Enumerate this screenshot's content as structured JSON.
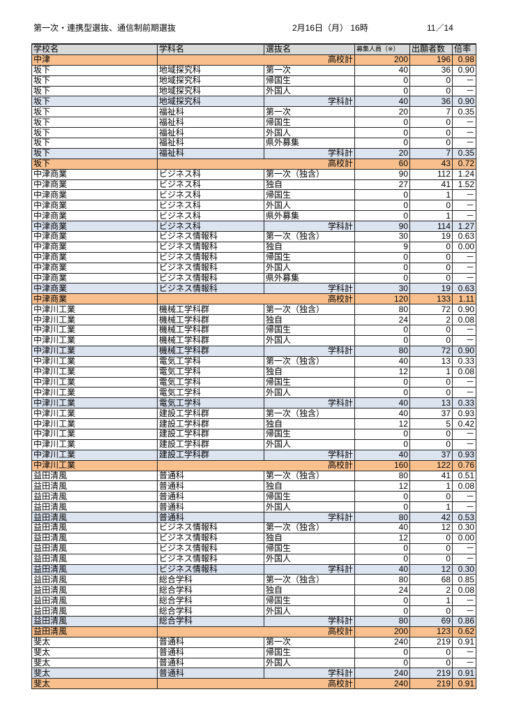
{
  "header": {
    "title": "第一次・連携型選抜、通信制前期選抜",
    "date": "2月16日（月） 16時",
    "page": "11／14"
  },
  "columns": [
    "学校名",
    "学科名",
    "選抜名",
    "募集人員（※）",
    "出願者数",
    "倍率"
  ],
  "colors": {
    "school_total": "#f9c08e",
    "dept_total": "#dce4f0",
    "header": "#d9d9d9"
  },
  "rows": [
    [
      "中津",
      "",
      "高校計",
      "200",
      "196",
      "0.98",
      "tot"
    ],
    [
      "坂下",
      "地域探究科",
      "第一次",
      "40",
      "36",
      "0.90",
      ""
    ],
    [
      "坂下",
      "地域探究科",
      "帰国生",
      "0",
      "0",
      "－",
      ""
    ],
    [
      "坂下",
      "地域探究科",
      "外国人",
      "0",
      "0",
      "－",
      ""
    ],
    [
      "坂下",
      "地域探究科",
      "学科計",
      "40",
      "36",
      "0.90",
      "sub"
    ],
    [
      "坂下",
      "福祉科",
      "第一次",
      "20",
      "7",
      "0.35",
      ""
    ],
    [
      "坂下",
      "福祉科",
      "帰国生",
      "0",
      "0",
      "－",
      ""
    ],
    [
      "坂下",
      "福祉科",
      "外国人",
      "0",
      "0",
      "－",
      ""
    ],
    [
      "坂下",
      "福祉科",
      "県外募集",
      "0",
      "0",
      "－",
      ""
    ],
    [
      "坂下",
      "福祉科",
      "学科計",
      "20",
      "7",
      "0.35",
      "sub"
    ],
    [
      "坂下",
      "",
      "高校計",
      "60",
      "43",
      "0.72",
      "tot"
    ],
    [
      "中津商業",
      "ビジネス科",
      "第一次（独含）",
      "90",
      "112",
      "1.24",
      ""
    ],
    [
      "中津商業",
      "ビジネス科",
      "独自",
      "27",
      "41",
      "1.52",
      ""
    ],
    [
      "中津商業",
      "ビジネス科",
      "帰国生",
      "0",
      "1",
      "－",
      ""
    ],
    [
      "中津商業",
      "ビジネス科",
      "外国人",
      "0",
      "0",
      "－",
      ""
    ],
    [
      "中津商業",
      "ビジネス科",
      "県外募集",
      "0",
      "1",
      "－",
      ""
    ],
    [
      "中津商業",
      "ビジネス科",
      "学科計",
      "90",
      "114",
      "1.27",
      "sub"
    ],
    [
      "中津商業",
      "ビジネス情報科",
      "第一次（独含）",
      "30",
      "19",
      "0.63",
      ""
    ],
    [
      "中津商業",
      "ビジネス情報科",
      "独自",
      "9",
      "0",
      "0.00",
      ""
    ],
    [
      "中津商業",
      "ビジネス情報科",
      "帰国生",
      "0",
      "0",
      "－",
      ""
    ],
    [
      "中津商業",
      "ビジネス情報科",
      "外国人",
      "0",
      "0",
      "－",
      ""
    ],
    [
      "中津商業",
      "ビジネス情報科",
      "県外募集",
      "0",
      "0",
      "－",
      ""
    ],
    [
      "中津商業",
      "ビジネス情報科",
      "学科計",
      "30",
      "19",
      "0.63",
      "sub"
    ],
    [
      "中津商業",
      "",
      "高校計",
      "120",
      "133",
      "1.11",
      "tot"
    ],
    [
      "中津川工業",
      "機械工学科群",
      "第一次（独含）",
      "80",
      "72",
      "0.90",
      ""
    ],
    [
      "中津川工業",
      "機械工学科群",
      "独自",
      "24",
      "2",
      "0.08",
      ""
    ],
    [
      "中津川工業",
      "機械工学科群",
      "帰国生",
      "0",
      "0",
      "－",
      ""
    ],
    [
      "中津川工業",
      "機械工学科群",
      "外国人",
      "0",
      "0",
      "－",
      ""
    ],
    [
      "中津川工業",
      "機械工学科群",
      "学科計",
      "80",
      "72",
      "0.90",
      "sub"
    ],
    [
      "中津川工業",
      "電気工学科",
      "第一次（独含）",
      "40",
      "13",
      "0.33",
      ""
    ],
    [
      "中津川工業",
      "電気工学科",
      "独自",
      "12",
      "1",
      "0.08",
      ""
    ],
    [
      "中津川工業",
      "電気工学科",
      "帰国生",
      "0",
      "0",
      "－",
      ""
    ],
    [
      "中津川工業",
      "電気工学科",
      "外国人",
      "0",
      "0",
      "－",
      ""
    ],
    [
      "中津川工業",
      "電気工学科",
      "学科計",
      "40",
      "13",
      "0.33",
      "sub"
    ],
    [
      "中津川工業",
      "建設工学科群",
      "第一次（独含）",
      "40",
      "37",
      "0.93",
      ""
    ],
    [
      "中津川工業",
      "建設工学科群",
      "独自",
      "12",
      "5",
      "0.42",
      ""
    ],
    [
      "中津川工業",
      "建設工学科群",
      "帰国生",
      "0",
      "0",
      "－",
      ""
    ],
    [
      "中津川工業",
      "建設工学科群",
      "外国人",
      "0",
      "0",
      "－",
      ""
    ],
    [
      "中津川工業",
      "建設工学科群",
      "学科計",
      "40",
      "37",
      "0.93",
      "sub"
    ],
    [
      "中津川工業",
      "",
      "高校計",
      "160",
      "122",
      "0.76",
      "tot"
    ],
    [
      "益田清風",
      "普通科",
      "第一次（独含）",
      "80",
      "41",
      "0.51",
      ""
    ],
    [
      "益田清風",
      "普通科",
      "独自",
      "12",
      "1",
      "0.08",
      ""
    ],
    [
      "益田清風",
      "普通科",
      "帰国生",
      "0",
      "0",
      "－",
      ""
    ],
    [
      "益田清風",
      "普通科",
      "外国人",
      "0",
      "1",
      "－",
      ""
    ],
    [
      "益田清風",
      "普通科",
      "学科計",
      "80",
      "42",
      "0.53",
      "sub"
    ],
    [
      "益田清風",
      "ビジネス情報科",
      "第一次（独含）",
      "40",
      "12",
      "0.30",
      ""
    ],
    [
      "益田清風",
      "ビジネス情報科",
      "独自",
      "12",
      "0",
      "0.00",
      ""
    ],
    [
      "益田清風",
      "ビジネス情報科",
      "帰国生",
      "0",
      "0",
      "－",
      ""
    ],
    [
      "益田清風",
      "ビジネス情報科",
      "外国人",
      "0",
      "0",
      "－",
      ""
    ],
    [
      "益田清風",
      "ビジネス情報科",
      "学科計",
      "40",
      "12",
      "0.30",
      "sub"
    ],
    [
      "益田清風",
      "総合学科",
      "第一次（独含）",
      "80",
      "68",
      "0.85",
      ""
    ],
    [
      "益田清風",
      "総合学科",
      "独自",
      "24",
      "2",
      "0.08",
      ""
    ],
    [
      "益田清風",
      "総合学科",
      "帰国生",
      "0",
      "1",
      "－",
      ""
    ],
    [
      "益田清風",
      "総合学科",
      "外国人",
      "0",
      "0",
      "－",
      ""
    ],
    [
      "益田清風",
      "総合学科",
      "学科計",
      "80",
      "69",
      "0.86",
      "sub"
    ],
    [
      "益田清風",
      "",
      "高校計",
      "200",
      "123",
      "0.62",
      "tot"
    ],
    [
      "斐太",
      "普通科",
      "第一次",
      "240",
      "219",
      "0.91",
      ""
    ],
    [
      "斐太",
      "普通科",
      "帰国生",
      "0",
      "0",
      "－",
      ""
    ],
    [
      "斐太",
      "普通科",
      "外国人",
      "0",
      "0",
      "－",
      ""
    ],
    [
      "斐太",
      "普通科",
      "学科計",
      "240",
      "219",
      "0.91",
      "sub"
    ],
    [
      "斐太",
      "",
      "高校計",
      "240",
      "219",
      "0.91",
      "tot"
    ]
  ]
}
